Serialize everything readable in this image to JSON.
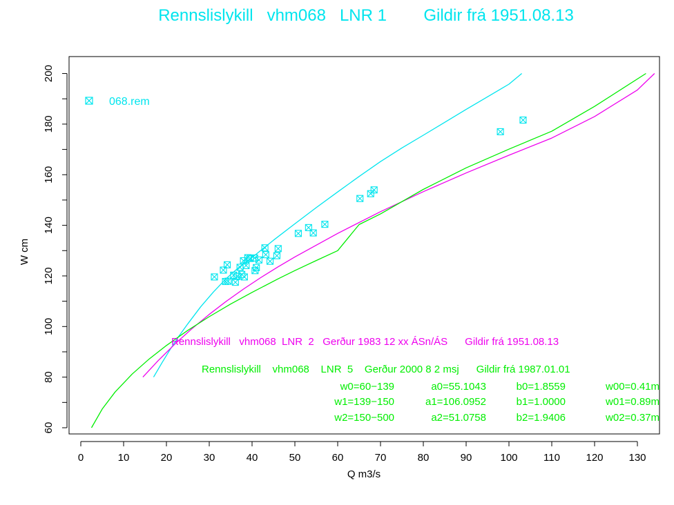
{
  "chart_data": {
    "type": "line",
    "title": "Rennslislykill   vhm068   LNR 1        Gildir frá 1951.08.13",
    "xlabel": "Q m3/s",
    "ylabel": "W cm",
    "xlim": [
      0,
      135
    ],
    "ylim": [
      55,
      202
    ],
    "x_ticks": [
      0,
      10,
      20,
      30,
      40,
      50,
      60,
      70,
      80,
      90,
      100,
      110,
      120,
      130
    ],
    "y_ticks": [
      60,
      80,
      100,
      120,
      140,
      160,
      180,
      200
    ],
    "legend": {
      "label": "068.rem",
      "placement": "top-left"
    },
    "colors": {
      "cyan": "#00e5ee",
      "magenta": "#ee00ee",
      "green": "#00ee00"
    },
    "series": [
      {
        "name": "068.rem",
        "kind": "scatter",
        "color": "#00e5ee",
        "x": [
          31.2,
          33.3,
          33.8,
          34.4,
          34.2,
          35.7,
          36.1,
          36.5,
          37.2,
          37.6,
          38.0,
          38.2,
          38.6,
          39.0,
          39.6,
          40.7,
          40.6,
          41.0,
          41.6,
          43.0,
          43.2,
          44.2,
          45.8,
          46.1,
          50.8,
          53.2,
          54.3,
          57.0,
          65.2,
          67.7,
          68.5,
          98.0,
          103.3
        ],
        "y": [
          119.6,
          122.3,
          117.8,
          117.9,
          124.4,
          120.3,
          117.5,
          119.8,
          123.4,
          120.6,
          126.0,
          119.6,
          124.1,
          127.2,
          126.9,
          122.1,
          127.1,
          123.3,
          126.3,
          131.1,
          128.4,
          125.8,
          128.0,
          130.8,
          136.8,
          139.1,
          137.0,
          140.4,
          150.6,
          152.5,
          154.0,
          177.0,
          181.6
        ]
      },
      {
        "name": "LNR 1",
        "kind": "line",
        "color": "#00e5ee",
        "x": [
          17.0,
          19.0,
          21.0,
          23.0,
          25.0,
          28.0,
          31.0,
          34.0,
          37.0,
          40.0,
          45.0,
          50.0,
          55.0,
          60.0,
          65.0,
          70.0,
          75.0,
          80.0,
          85.0,
          90.0,
          95.0,
          100.0,
          103.0
        ],
        "y": [
          80,
          85.8,
          91.3,
          96.4,
          101.1,
          107.8,
          113.7,
          119.0,
          123.5,
          127.3,
          134.1,
          140.6,
          147.0,
          153.2,
          159.3,
          165.2,
          170.6,
          175.6,
          180.7,
          185.8,
          190.8,
          195.8,
          200.0
        ]
      },
      {
        "name": "LNR 2",
        "kind": "line",
        "color": "#ee00ee",
        "x": [
          14.5,
          18,
          22,
          26,
          30,
          34,
          38,
          42,
          46,
          50,
          60,
          70,
          80,
          90,
          100,
          110,
          120,
          130,
          134
        ],
        "y": [
          80,
          86.4,
          93.1,
          99.2,
          104.8,
          110.0,
          114.8,
          119.3,
          123.5,
          127.5,
          136.8,
          145.4,
          153.3,
          160.7,
          167.7,
          174.5,
          183.0,
          193.5,
          200.0
        ]
      },
      {
        "name": "LNR 5",
        "kind": "line",
        "color": "#00ee00",
        "x": [
          2.5,
          5,
          8,
          12,
          16,
          20,
          25,
          30,
          35,
          40,
          46,
          50,
          55,
          60,
          65,
          70,
          80,
          90,
          100,
          110,
          120,
          132
        ],
        "y": [
          60,
          67.4,
          74.1,
          81.2,
          87.2,
          92.5,
          98.5,
          103.9,
          108.9,
          113.5,
          118.8,
          122.1,
          126.1,
          130.0,
          140.3,
          144.5,
          154.2,
          162.7,
          170.1,
          177.2,
          187.0,
          200.0
        ]
      }
    ]
  },
  "annotations": {
    "lnr2": {
      "text": "Rennslislykill   vhm068  LNR  2   Gerður 1983 12 xx ÁSn/ÁS      Gildir frá 1951.08.13"
    },
    "lnr5": {
      "header": "Rennslislykill    vhm068    LNR  5    Gerður 2000 8 2 msj      Gildir frá 1987.01.01",
      "rows": [
        {
          "w": "w0=60−139",
          "a": "a0=55.1043",
          "b": "b0=1.8559",
          "ww": "w00=0.41m"
        },
        {
          "w": "w1=139−150",
          "a": "a1=106.0952",
          "b": "b1=1.0000",
          "ww": "w01=0.89m"
        },
        {
          "w": "w2=150−500",
          "a": "a2=51.0758",
          "b": "b2=1.9406",
          "ww": "w02=0.37m"
        }
      ]
    }
  }
}
